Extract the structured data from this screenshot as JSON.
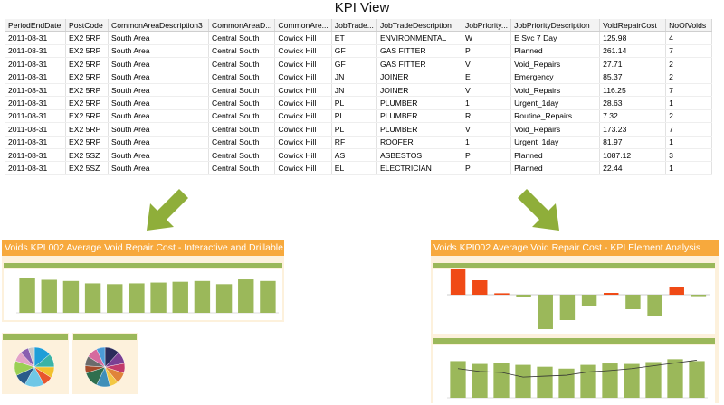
{
  "window": {
    "title": "KPI View"
  },
  "table": {
    "columns": [
      "PeriodEndDate",
      "PostCode",
      "CommonAreaDescription3",
      "CommonAreaD...",
      "CommonAre...",
      "JobTrade...",
      "JobTradeDescription",
      "JobPriority...",
      "JobPriorityDescription",
      "VoidRepairCost",
      "NoOfVoids"
    ],
    "rows": [
      [
        "2011-08-31",
        "EX2 5RP",
        "South Area",
        "Central South",
        "Cowick Hill",
        "ET",
        "ENVIRONMENTAL",
        "W",
        "E Svc 7 Day",
        "125.98",
        "4"
      ],
      [
        "2011-08-31",
        "EX2 5RP",
        "South Area",
        "Central South",
        "Cowick Hill",
        "GF",
        "GAS FITTER",
        "P",
        "Planned",
        "261.14",
        "7"
      ],
      [
        "2011-08-31",
        "EX2 5RP",
        "South Area",
        "Central South",
        "Cowick Hill",
        "GF",
        "GAS FITTER",
        "V",
        "Void_Repairs",
        "27.71",
        "2"
      ],
      [
        "2011-08-31",
        "EX2 5RP",
        "South Area",
        "Central South",
        "Cowick Hill",
        "JN",
        "JOINER",
        "E",
        "Emergency",
        "85.37",
        "2"
      ],
      [
        "2011-08-31",
        "EX2 5RP",
        "South Area",
        "Central South",
        "Cowick Hill",
        "JN",
        "JOINER",
        "V",
        "Void_Repairs",
        "116.25",
        "7"
      ],
      [
        "2011-08-31",
        "EX2 5RP",
        "South Area",
        "Central South",
        "Cowick Hill",
        "PL",
        "PLUMBER",
        "1",
        "Urgent_1day",
        "28.63",
        "1"
      ],
      [
        "2011-08-31",
        "EX2 5RP",
        "South Area",
        "Central South",
        "Cowick Hill",
        "PL",
        "PLUMBER",
        "R",
        "Routine_Repairs",
        "7.32",
        "2"
      ],
      [
        "2011-08-31",
        "EX2 5RP",
        "South Area",
        "Central South",
        "Cowick Hill",
        "PL",
        "PLUMBER",
        "V",
        "Void_Repairs",
        "173.23",
        "7"
      ],
      [
        "2011-08-31",
        "EX2 5RP",
        "South Area",
        "Central South",
        "Cowick Hill",
        "RF",
        "ROOFER",
        "1",
        "Urgent_1day",
        "81.97",
        "1"
      ],
      [
        "2011-08-31",
        "EX2 5SZ",
        "South Area",
        "Central South",
        "Cowick Hill",
        "AS",
        "ASBESTOS",
        "P",
        "Planned",
        "1087.12",
        "3"
      ],
      [
        "2011-08-31",
        "EX2 5SZ",
        "South Area",
        "Central South",
        "Cowick Hill",
        "EL",
        "ELECTRICIAN",
        "P",
        "Planned",
        "22.44",
        "1"
      ]
    ]
  },
  "panels": {
    "left": {
      "title": "Voids KPI 002 Average Void Repair Cost - Interactive and Drillable"
    },
    "right": {
      "title": "Voids KPI002 Average Void Repair Cost - KPI Element Analysis"
    }
  },
  "colors": {
    "accent_orange": "#f7a93d",
    "bar_green": "#9bb85a",
    "arrow_green": "#8fae3a",
    "bar_red": "#f04a16",
    "panel_bg": "#fdf1dc"
  },
  "chart_data": [
    {
      "type": "bar",
      "values": [
        88,
        83,
        80,
        74,
        72,
        74,
        76,
        78,
        80,
        72,
        84,
        80
      ],
      "title": "",
      "xlabel": "",
      "ylabel": ""
    },
    {
      "type": "pie",
      "values": [
        14,
        11,
        9,
        8,
        16,
        10,
        12,
        8,
        7,
        5
      ],
      "title": ""
    },
    {
      "type": "pie",
      "values": [
        12,
        10,
        8,
        9,
        7,
        11,
        13,
        6,
        8,
        9,
        7
      ],
      "title": ""
    },
    {
      "type": "bar",
      "values": [
        75,
        40,
        4,
        -6,
        -95,
        -70,
        -30,
        5,
        -40,
        -60,
        20,
        -4
      ],
      "title": "",
      "xlabel": "",
      "ylabel": ""
    },
    {
      "type": "bar",
      "values": [
        78,
        72,
        75,
        70,
        66,
        62,
        70,
        73,
        72,
        76,
        82,
        78
      ],
      "line": [
        62,
        56,
        54,
        44,
        46,
        48,
        55,
        58,
        62,
        68,
        74,
        80
      ],
      "title": ""
    }
  ]
}
